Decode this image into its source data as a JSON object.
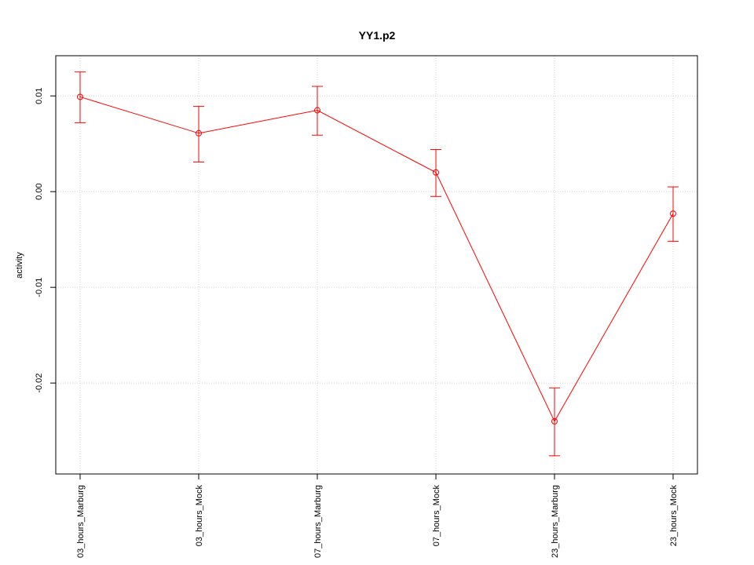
{
  "chart_data": {
    "type": "line",
    "title": "YY1.p2",
    "xlabel": "",
    "ylabel": "activity",
    "categories": [
      "03_hours_Marburg",
      "03_hours_Mock",
      "07_hours_Marburg",
      "07_hours_Mock",
      "23_hours_Marburg",
      "23_hours_Mock"
    ],
    "series": [
      {
        "values": [
          0.0099,
          0.0061,
          0.0085,
          0.002,
          -0.024,
          -0.0023
        ],
        "lower": [
          0.0072,
          0.0031,
          0.0059,
          -0.0005,
          -0.0276,
          -0.0052
        ],
        "upper": [
          0.0125,
          0.0089,
          0.011,
          0.0044,
          -0.0205,
          0.0005
        ],
        "color": "#ff0000"
      }
    ],
    "yticks": [
      -0.02,
      -0.01,
      0.0,
      0.01
    ],
    "ytick_labels": [
      "-0.02",
      "-0.01",
      "0.00",
      "0.01"
    ],
    "ylim": [
      -0.0295,
      0.0142
    ],
    "grid": true,
    "grid_color": "#d3d3d3"
  }
}
